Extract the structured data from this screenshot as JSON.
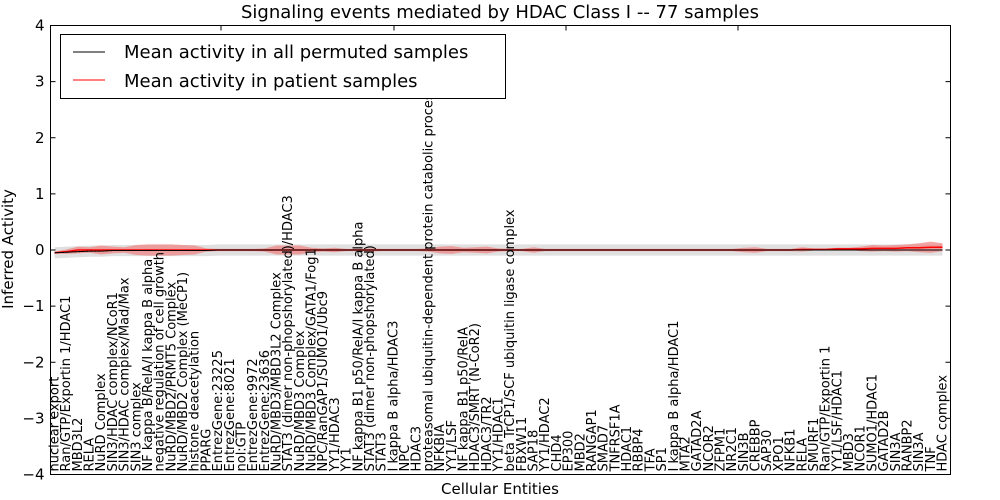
{
  "chart_data": {
    "type": "line",
    "title": "Signaling events mediated by HDAC Class I -- 77 samples",
    "xlabel": "Cellular Entities",
    "ylabel": "Inferred Activity",
    "ylim": [
      -4,
      4
    ],
    "yticks": [
      4,
      3,
      2,
      1,
      0,
      -1,
      -2,
      -3,
      -4
    ],
    "ytick_labels": [
      "4",
      "3",
      "2",
      "1",
      "0",
      "−1",
      "−2",
      "−3",
      "−4"
    ],
    "grid": false,
    "legend": {
      "placement": "top-left",
      "entries": [
        {
          "label": "Mean activity in all permuted samples",
          "color": "#000000"
        },
        {
          "label": "Mean activity in patient samples",
          "color": "#ff0000"
        }
      ]
    },
    "colors": {
      "permuted_line": "#000000",
      "patient_line": "#ff0000",
      "patient_band": "#f08080",
      "permuted_band": "#cccccc"
    },
    "categories": [
      "nuclear export",
      "Ran/GTP/Exportin 1/HDAC1",
      "MBD3L2",
      "RELA",
      "NuRD Complex",
      "SIN3/HDAC complex/NCoR1",
      "SIN3/HDAC complex/Mad/Max",
      "SIN3 complex",
      "NF kappa B/RelA/I kappa B alpha",
      "negative regulation of cell growth",
      "NuRD/MBD2/PRMT5 Complex",
      "NuRD/MBD2 Complex (MeCP1)",
      "histone deacetylation",
      "PPARG",
      "EntrezGene:23225",
      "EntrezGene:8021",
      "nol:GTP",
      "EntrezGene:9972",
      "EntrezGene:23636",
      "NuRD/MBD3/MBD3L2 Complex",
      "STAT3 (dimer non-phopshorylated)/HDAC3",
      "NuRD/MBD3 Complex",
      "NuRD/MBD3 Complex/GATA1/Fog1",
      "NPC/RanGAP1/SUMO1/Ubc9",
      "YY1/HDAC3",
      "YY1",
      "NF kappa B1 p50/RelA/I kappa B alpha",
      "STAT3 (dimer non-phopshorylated)",
      "STAT3",
      "I kappa B alpha/HDAC3",
      "NPC",
      "HDAC3",
      "proteasomal ubiquitin-dependent protein catabolic process",
      "NFKBIA",
      "YY1/LSF",
      "NF kappa B1 p50/RelA",
      "HDAC3/SMRT (N-CoR2)",
      "HDAC3/TR2",
      "YY1/HDAC1",
      "beta TrCP1/SCF ubiquitin ligase complex",
      "FBXW11",
      "SAP18",
      "YY1/HDAC2",
      "CHD4",
      "EP300",
      "MBD2",
      "RANGAP1",
      "SMAD7",
      "TNFRSF1A",
      "HDAC1",
      "RBBP4",
      "TFA",
      "SP1",
      "I kappa B alpha/HDAC1",
      "MTA2",
      "GATAD2A",
      "NCOR2",
      "ZFPM1",
      "NR2C1",
      "SIN3B",
      "CREBBP",
      "SAP30",
      "XPO1",
      "NFKB1",
      "RELA",
      "SMURF1",
      "Ran/GTP/Exportin 1",
      "YY1/LSF/HDAC1",
      "MBD3",
      "NCOR1",
      "SUMO1/HDAC1",
      "GATAD2B",
      "SIN3A",
      "RANBP2",
      "SIN3A",
      "TNF",
      "HDAC complex"
    ],
    "series": [
      {
        "name": "Mean activity in all permuted samples",
        "values": [
          -0.05,
          -0.04,
          -0.03,
          -0.02,
          -0.02,
          -0.01,
          -0.01,
          -0.01,
          -0.01,
          -0.01,
          -0.01,
          -0.01,
          -0.01,
          -0.01,
          0.0,
          0.0,
          0.0,
          0.0,
          0.0,
          0.0,
          0.0,
          0.0,
          0.0,
          0.0,
          0.0,
          0.0,
          0.0,
          0.0,
          0.0,
          0.0,
          0.0,
          0.0,
          0.0,
          0.0,
          0.0,
          0.0,
          0.0,
          0.0,
          0.0,
          0.0,
          0.0,
          0.0,
          0.0,
          0.0,
          0.0,
          0.0,
          0.0,
          0.0,
          0.0,
          0.0,
          0.0,
          0.0,
          0.0,
          0.0,
          0.0,
          0.0,
          0.0,
          0.0,
          0.0,
          0.0,
          0.0,
          0.0,
          0.0,
          0.0,
          0.0,
          0.0,
          0.0,
          0.0,
          0.0,
          0.0,
          0.0,
          0.0,
          0.0,
          0.0,
          0.0,
          0.0,
          0.0
        ]
      },
      {
        "name": "Mean activity in patient samples",
        "values": [
          -0.05,
          -0.03,
          0.0,
          0.0,
          0.0,
          0.0,
          0.0,
          0.0,
          0.0,
          0.0,
          0.0,
          0.0,
          0.0,
          0.0,
          0.0,
          0.0,
          0.0,
          0.0,
          0.0,
          0.0,
          0.0,
          0.0,
          0.0,
          0.0,
          0.0,
          0.0,
          0.0,
          0.0,
          0.0,
          0.0,
          0.0,
          0.0,
          0.0,
          0.0,
          0.0,
          0.0,
          0.0,
          0.0,
          0.0,
          0.0,
          0.0,
          0.0,
          0.0,
          0.0,
          0.0,
          0.0,
          0.0,
          0.0,
          0.0,
          0.0,
          0.0,
          0.0,
          0.0,
          0.0,
          0.0,
          0.0,
          0.0,
          0.0,
          0.0,
          0.0,
          0.0,
          0.0,
          0.0,
          0.0,
          0.01,
          0.01,
          0.01,
          0.02,
          0.02,
          0.02,
          0.03,
          0.03,
          0.03,
          0.04,
          0.04,
          0.05,
          0.05
        ]
      }
    ],
    "patient_band_halfwidth": [
      0.02,
      0.04,
      0.06,
      0.05,
      0.08,
      0.06,
      0.05,
      0.09,
      0.1,
      0.1,
      0.1,
      0.09,
      0.08,
      0.03,
      0.02,
      0.02,
      0.02,
      0.02,
      0.03,
      0.08,
      0.08,
      0.08,
      0.04,
      0.03,
      0.04,
      0.02,
      0.02,
      0.03,
      0.02,
      0.02,
      0.02,
      0.02,
      0.03,
      0.06,
      0.07,
      0.04,
      0.05,
      0.06,
      0.03,
      0.02,
      0.02,
      0.05,
      0.02,
      0.02,
      0.02,
      0.02,
      0.02,
      0.02,
      0.02,
      0.02,
      0.02,
      0.02,
      0.02,
      0.02,
      0.02,
      0.02,
      0.02,
      0.02,
      0.02,
      0.04,
      0.05,
      0.02,
      0.02,
      0.02,
      0.04,
      0.02,
      0.02,
      0.02,
      0.02,
      0.04,
      0.06,
      0.05,
      0.06,
      0.06,
      0.08,
      0.1,
      0.07
    ],
    "permuted_band_halfwidth": 0.1
  }
}
